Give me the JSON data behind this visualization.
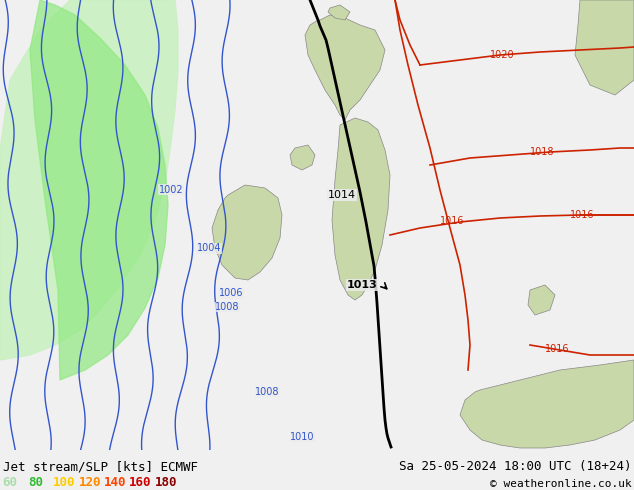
{
  "title_left": "Jet stream/SLP [kts] ECMWF",
  "title_right": "Sa 25-05-2024 18:00 UTC (18+24)",
  "copyright": "© weatheronline.co.uk",
  "background_color": "#f0f0f0",
  "map_bg_color": "#ebebeb",
  "legend_values": [
    "60",
    "80",
    "100",
    "120",
    "140",
    "160",
    "180"
  ],
  "legend_colors": [
    "#aaddaa",
    "#33bb33",
    "#ffcc00",
    "#ff8800",
    "#ff4400",
    "#cc0000",
    "#880000"
  ],
  "blue_contour_color": "#3355cc",
  "red_contour_color": "#cc2200",
  "black_contour_color": "#000000",
  "green_fill_light": "#c8f0c0",
  "green_fill_mid": "#90e880",
  "land_color": "#c8d8a8",
  "land_edge_color": "#888888",
  "figsize": [
    6.34,
    4.9
  ],
  "dpi": 100,
  "font_size_title": 9,
  "font_size_legend": 9,
  "font_size_copyright": 8,
  "font_size_label": 7
}
